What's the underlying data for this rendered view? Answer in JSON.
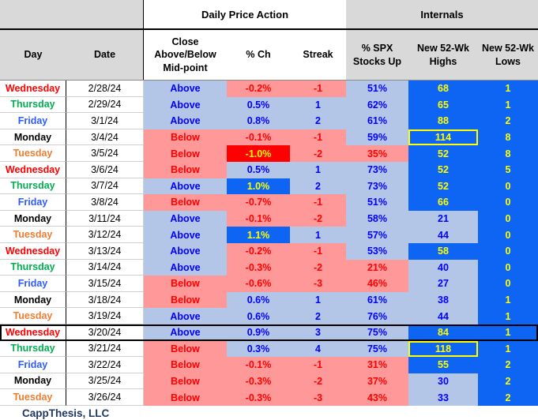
{
  "header": {
    "group_daily": "Daily Price Action",
    "group_internals": "Internals"
  },
  "footer": {
    "brand": "CappThesis, LLC"
  },
  "colors": {
    "day_text": {
      "Monday": "#000000",
      "Tuesday": "#ED7D31",
      "Wednesday": "#FF0000",
      "Thursday": "#00B050",
      "Friday": "#2E5BFF"
    },
    "positive_bg": "#B4C6E7",
    "positive_text": "#0000FF",
    "negative_bg": "#FF9999",
    "negative_text": "#FF0000",
    "emphasis_up_bg": "#0F65F3",
    "emphasis_down_bg": "#FF0000",
    "emphasis_text": "#FFFF00",
    "internals_hot_bg": "#0F65F3",
    "internals_hot_text": "#FFFF00",
    "header_bg": "#D9D9D9",
    "highlight_box": "#FFFF00",
    "brand_text": "#1F3864"
  },
  "chart_data": {
    "type": "table",
    "group_headers": [
      "Daily Price Action",
      "Internals"
    ],
    "columns": [
      {
        "key": "day",
        "lines": [
          "Day"
        ]
      },
      {
        "key": "date",
        "lines": [
          "Date"
        ]
      },
      {
        "key": "position",
        "lines": [
          "Close",
          "Above/Below",
          "Mid-point"
        ]
      },
      {
        "key": "pct_ch",
        "lines": [
          "% Ch"
        ]
      },
      {
        "key": "streak",
        "lines": [
          "Streak"
        ]
      },
      {
        "key": "spx_up",
        "lines": [
          "% SPX",
          "Stocks Up"
        ]
      },
      {
        "key": "highs",
        "lines": [
          "New 52-Wk",
          "Highs"
        ]
      },
      {
        "key": "lows",
        "lines": [
          "New 52-Wk",
          "Lows"
        ]
      }
    ],
    "rows": [
      {
        "day": "Wednesday",
        "date": "2/28/24",
        "position": "Above",
        "pct_ch": "-0.2%",
        "streak": "-1",
        "spx_up": "51%",
        "highs": "68",
        "lows": "1",
        "highs_hot": true,
        "highs_boxed": false,
        "pct_emphasis": false,
        "row_boxed": false
      },
      {
        "day": "Thursday",
        "date": "2/29/24",
        "position": "Above",
        "pct_ch": "0.5%",
        "streak": "1",
        "spx_up": "62%",
        "highs": "65",
        "lows": "1",
        "highs_hot": true,
        "highs_boxed": false,
        "pct_emphasis": false,
        "row_boxed": false
      },
      {
        "day": "Friday",
        "date": "3/1/24",
        "position": "Above",
        "pct_ch": "0.8%",
        "streak": "2",
        "spx_up": "61%",
        "highs": "88",
        "lows": "2",
        "highs_hot": true,
        "highs_boxed": false,
        "pct_emphasis": false,
        "row_boxed": false
      },
      {
        "day": "Monday",
        "date": "3/4/24",
        "position": "Below",
        "pct_ch": "-0.1%",
        "streak": "-1",
        "spx_up": "59%",
        "highs": "114",
        "lows": "8",
        "highs_hot": true,
        "highs_boxed": true,
        "pct_emphasis": false,
        "row_boxed": false
      },
      {
        "day": "Tuesday",
        "date": "3/5/24",
        "position": "Below",
        "pct_ch": "-1.0%",
        "streak": "-2",
        "spx_up": "35%",
        "highs": "52",
        "lows": "8",
        "highs_hot": true,
        "highs_boxed": false,
        "pct_emphasis": true,
        "row_boxed": false
      },
      {
        "day": "Wednesday",
        "date": "3/6/24",
        "position": "Below",
        "pct_ch": "0.5%",
        "streak": "1",
        "spx_up": "73%",
        "highs": "52",
        "lows": "5",
        "highs_hot": true,
        "highs_boxed": false,
        "pct_emphasis": false,
        "row_boxed": false
      },
      {
        "day": "Thursday",
        "date": "3/7/24",
        "position": "Above",
        "pct_ch": "1.0%",
        "streak": "2",
        "spx_up": "73%",
        "highs": "52",
        "lows": "0",
        "highs_hot": true,
        "highs_boxed": false,
        "pct_emphasis": true,
        "row_boxed": false
      },
      {
        "day": "Friday",
        "date": "3/8/24",
        "position": "Below",
        "pct_ch": "-0.7%",
        "streak": "-1",
        "spx_up": "51%",
        "highs": "66",
        "lows": "0",
        "highs_hot": true,
        "highs_boxed": false,
        "pct_emphasis": false,
        "row_boxed": false
      },
      {
        "day": "Monday",
        "date": "3/11/24",
        "position": "Above",
        "pct_ch": "-0.1%",
        "streak": "-2",
        "spx_up": "58%",
        "highs": "21",
        "lows": "0",
        "highs_hot": false,
        "highs_boxed": false,
        "pct_emphasis": false,
        "row_boxed": false
      },
      {
        "day": "Tuesday",
        "date": "3/12/24",
        "position": "Above",
        "pct_ch": "1.1%",
        "streak": "1",
        "spx_up": "57%",
        "highs": "44",
        "lows": "0",
        "highs_hot": false,
        "highs_boxed": false,
        "pct_emphasis": true,
        "row_boxed": false
      },
      {
        "day": "Wednesday",
        "date": "3/13/24",
        "position": "Above",
        "pct_ch": "-0.2%",
        "streak": "-1",
        "spx_up": "53%",
        "highs": "58",
        "lows": "0",
        "highs_hot": true,
        "highs_boxed": false,
        "pct_emphasis": false,
        "row_boxed": false
      },
      {
        "day": "Thursday",
        "date": "3/14/24",
        "position": "Above",
        "pct_ch": "-0.3%",
        "streak": "-2",
        "spx_up": "21%",
        "highs": "40",
        "lows": "0",
        "highs_hot": false,
        "highs_boxed": false,
        "pct_emphasis": false,
        "row_boxed": false
      },
      {
        "day": "Friday",
        "date": "3/15/24",
        "position": "Below",
        "pct_ch": "-0.6%",
        "streak": "-3",
        "spx_up": "46%",
        "highs": "27",
        "lows": "0",
        "highs_hot": false,
        "highs_boxed": false,
        "pct_emphasis": false,
        "row_boxed": false
      },
      {
        "day": "Monday",
        "date": "3/18/24",
        "position": "Below",
        "pct_ch": "0.6%",
        "streak": "1",
        "spx_up": "61%",
        "highs": "38",
        "lows": "1",
        "highs_hot": false,
        "highs_boxed": false,
        "pct_emphasis": false,
        "row_boxed": false
      },
      {
        "day": "Tuesday",
        "date": "3/19/24",
        "position": "Above",
        "pct_ch": "0.6%",
        "streak": "2",
        "spx_up": "76%",
        "highs": "44",
        "lows": "1",
        "highs_hot": false,
        "highs_boxed": false,
        "pct_emphasis": false,
        "row_boxed": false
      },
      {
        "day": "Wednesday",
        "date": "3/20/24",
        "position": "Above",
        "pct_ch": "0.9%",
        "streak": "3",
        "spx_up": "75%",
        "highs": "84",
        "lows": "1",
        "highs_hot": true,
        "highs_boxed": false,
        "pct_emphasis": false,
        "row_boxed": true
      },
      {
        "day": "Thursday",
        "date": "3/21/24",
        "position": "Below",
        "pct_ch": "0.3%",
        "streak": "4",
        "spx_up": "75%",
        "highs": "118",
        "lows": "1",
        "highs_hot": true,
        "highs_boxed": true,
        "pct_emphasis": false,
        "row_boxed": false
      },
      {
        "day": "Friday",
        "date": "3/22/24",
        "position": "Below",
        "pct_ch": "-0.1%",
        "streak": "-1",
        "spx_up": "31%",
        "highs": "55",
        "lows": "2",
        "highs_hot": true,
        "highs_boxed": false,
        "pct_emphasis": false,
        "row_boxed": false
      },
      {
        "day": "Monday",
        "date": "3/25/24",
        "position": "Below",
        "pct_ch": "-0.3%",
        "streak": "-2",
        "spx_up": "37%",
        "highs": "30",
        "lows": "2",
        "highs_hot": false,
        "highs_boxed": false,
        "pct_emphasis": false,
        "row_boxed": false
      },
      {
        "day": "Tuesday",
        "date": "3/26/24",
        "position": "Below",
        "pct_ch": "-0.3%",
        "streak": "-3",
        "spx_up": "43%",
        "highs": "33",
        "lows": "2",
        "highs_hot": false,
        "highs_boxed": false,
        "pct_emphasis": false,
        "row_boxed": false
      }
    ]
  }
}
